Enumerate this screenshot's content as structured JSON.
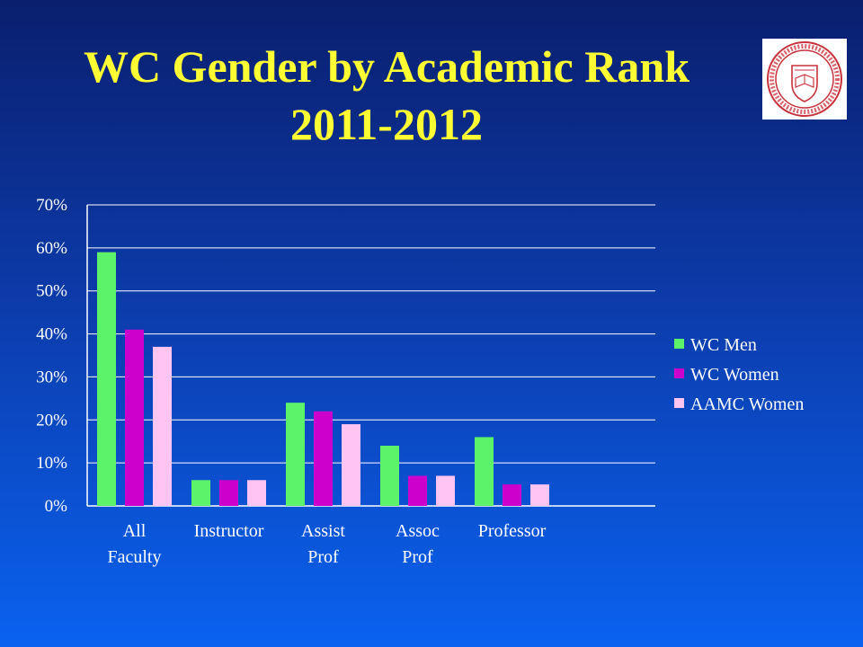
{
  "slide": {
    "title_line1": "WC Gender by Academic Rank",
    "title_line2": "2011-2012"
  },
  "logo": {
    "icon": "university-seal-icon"
  },
  "chart_data": {
    "type": "bar",
    "categories": [
      [
        "All",
        "Faculty"
      ],
      [
        "Instructor"
      ],
      [
        "Assist",
        "Prof"
      ],
      [
        "Assoc",
        "Prof"
      ],
      [
        "Professor"
      ]
    ],
    "series": [
      {
        "name": "WC Men",
        "color": "#5cf36b",
        "values": [
          59,
          6,
          24,
          14,
          16
        ]
      },
      {
        "name": "WC Women",
        "color": "#cc00cc",
        "values": [
          41,
          6,
          22,
          7,
          5
        ]
      },
      {
        "name": "AAMC Women",
        "color": "#ffc4f2",
        "values": [
          37,
          6,
          19,
          7,
          5
        ]
      }
    ],
    "yticks": [
      "0%",
      "10%",
      "20%",
      "30%",
      "40%",
      "50%",
      "60%",
      "70%"
    ],
    "ylim": [
      0,
      70
    ],
    "grid": true,
    "legend_position": "right"
  }
}
